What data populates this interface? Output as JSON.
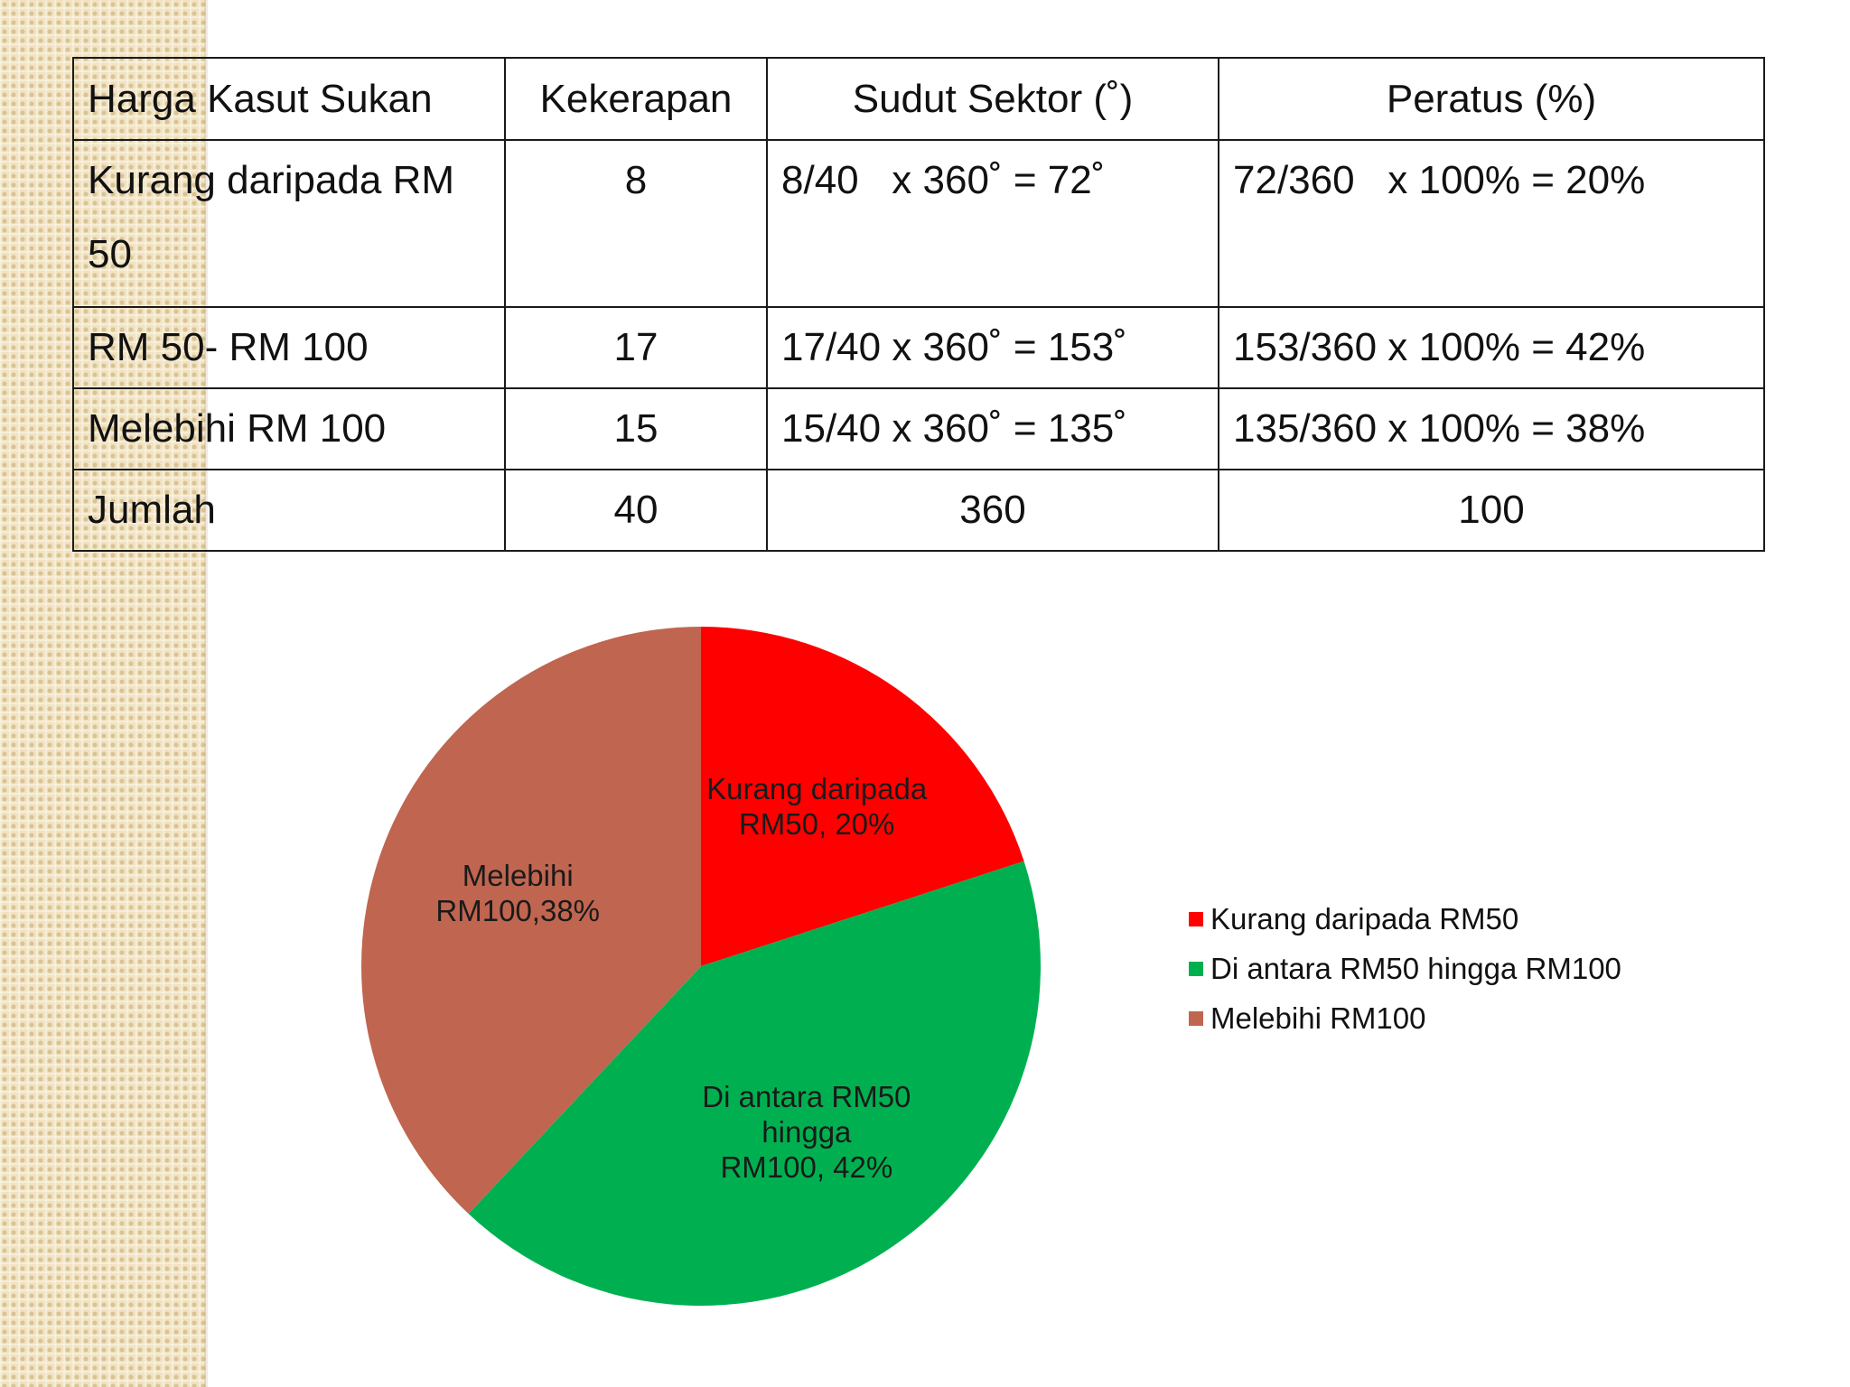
{
  "table": {
    "headers": [
      "Harga Kasut Sukan",
      "Kekerapan",
      "Sudut Sektor (˚)",
      "Peratus (%)"
    ],
    "rows": [
      {
        "category": "Kurang daripada RM 50",
        "frequency": "8",
        "angle": "8/40   x 360˚ = 72˚",
        "percent": "72/360   x 100% = 20%"
      },
      {
        "category": "RM 50- RM 100",
        "frequency": "17",
        "angle": "17/40 x 360˚ = 153˚",
        "percent": "153/360 x 100% = 42%"
      },
      {
        "category": "Melebihi RM 100",
        "frequency": "15",
        "angle": "15/40 x 360˚ = 135˚",
        "percent": "135/360 x 100% = 38%"
      }
    ],
    "total": {
      "label": "Jumlah",
      "frequency": "40",
      "angle": "360",
      "percent": "100"
    }
  },
  "chart_data": {
    "type": "pie",
    "categories": [
      "Kurang daripada RM50",
      "Di antara RM50 hingga RM100",
      "Melebihi RM100"
    ],
    "values": [
      20,
      42,
      38
    ],
    "colors": [
      "#ff0000",
      "#00b050",
      "#c0654f"
    ],
    "data_labels": [
      [
        "Kurang daripada",
        "RM50, 20%"
      ],
      [
        "Di antara RM50",
        "hingga",
        "RM100, 42%"
      ],
      [
        "Melebihi",
        "RM100,38%"
      ]
    ],
    "legend_position": "right"
  }
}
